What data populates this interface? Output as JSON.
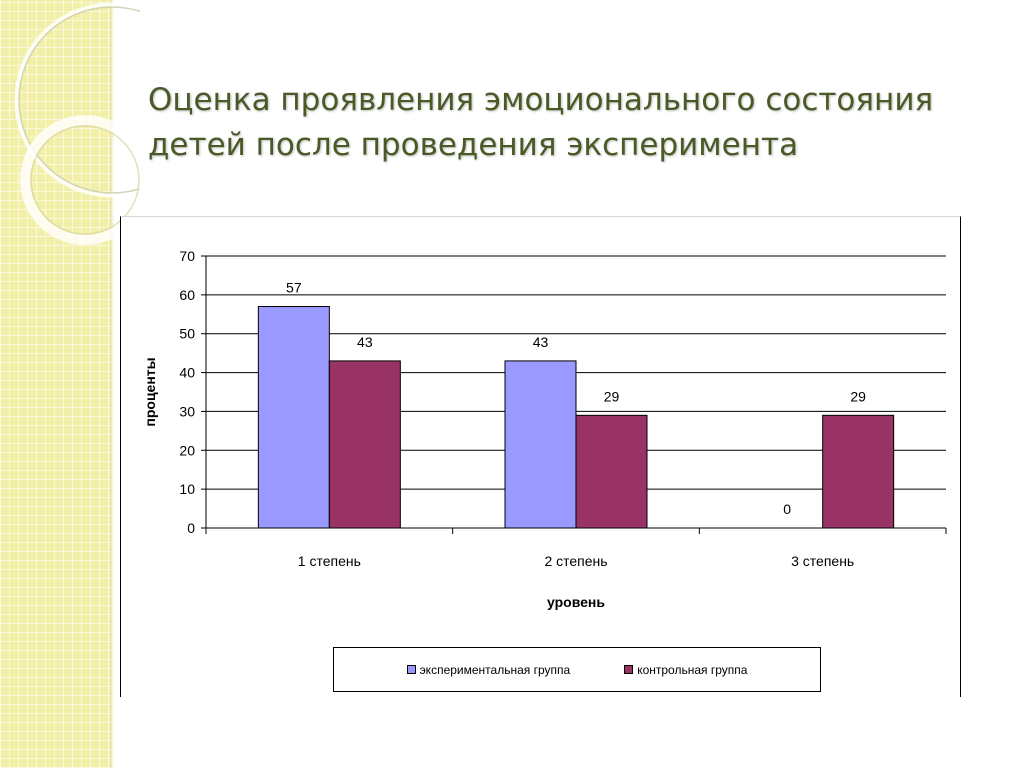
{
  "slide": {
    "title": "Оценка проявления эмоционального состояния детей после проведения эксперимента"
  },
  "chart_data": {
    "type": "bar",
    "title": "",
    "categories": [
      "1 степень",
      "2 степень",
      "3 степень"
    ],
    "series": [
      {
        "name": "экспериментальная группа",
        "values": [
          57,
          43,
          0
        ],
        "color": "#9999ff"
      },
      {
        "name": "контрольная группа",
        "values": [
          43,
          29,
          29
        ],
        "color": "#993366"
      }
    ],
    "xlabel": "уровень",
    "ylabel": "проценты",
    "ylim": [
      0,
      70
    ],
    "yticks": [
      0,
      10,
      20,
      30,
      40,
      50,
      60,
      70
    ],
    "grid": true,
    "data_labels": true,
    "legend_position": "bottom"
  }
}
